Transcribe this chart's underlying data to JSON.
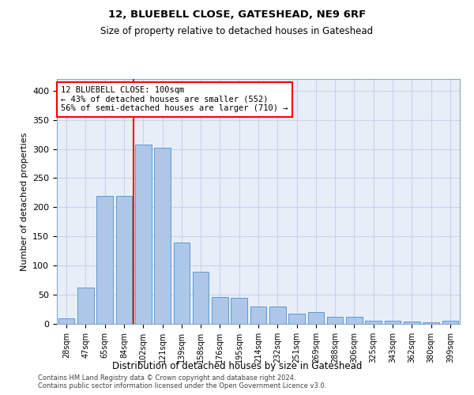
{
  "title1": "12, BLUEBELL CLOSE, GATESHEAD, NE9 6RF",
  "title2": "Size of property relative to detached houses in Gateshead",
  "xlabel": "Distribution of detached houses by size in Gateshead",
  "ylabel": "Number of detached properties",
  "categories": [
    "28sqm",
    "47sqm",
    "65sqm",
    "84sqm",
    "102sqm",
    "121sqm",
    "139sqm",
    "158sqm",
    "176sqm",
    "195sqm",
    "214sqm",
    "232sqm",
    "251sqm",
    "269sqm",
    "288sqm",
    "306sqm",
    "325sqm",
    "343sqm",
    "362sqm",
    "380sqm",
    "399sqm"
  ],
  "values": [
    10,
    62,
    220,
    220,
    307,
    302,
    140,
    90,
    46,
    45,
    30,
    30,
    18,
    20,
    12,
    12,
    5,
    5,
    4,
    3,
    5
  ],
  "bar_color": "#aec6e8",
  "bar_edge_color": "#5b9bd5",
  "grid_color": "#c8d4e8",
  "bg_color": "#e8eef8",
  "annotation_text": "12 BLUEBELL CLOSE: 100sqm\n← 43% of detached houses are smaller (552)\n56% of semi-detached houses are larger (710) →",
  "annotation_box_color": "white",
  "annotation_box_edge": "red",
  "property_line_color": "red",
  "ylim": [
    0,
    420
  ],
  "yticks": [
    0,
    50,
    100,
    150,
    200,
    250,
    300,
    350,
    400
  ],
  "footer1": "Contains HM Land Registry data © Crown copyright and database right 2024.",
  "footer2": "Contains public sector information licensed under the Open Government Licence v3.0."
}
